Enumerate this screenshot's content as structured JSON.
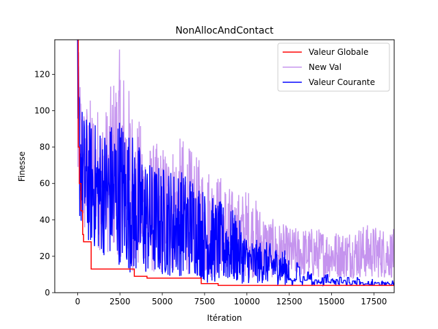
{
  "chart_data": {
    "type": "line",
    "title": "NonAllocAndContact",
    "xlabel": "Itération",
    "ylabel": "Finesse",
    "xlim": [
      -1350,
      18700
    ],
    "ylim": [
      0,
      139
    ],
    "xticks": [
      0,
      2500,
      5000,
      7500,
      10000,
      12500,
      15000,
      17500
    ],
    "yticks": [
      0,
      20,
      40,
      60,
      80,
      100,
      120
    ],
    "legend_position": "upper-right",
    "grid": false,
    "series": [
      {
        "name": "Valeur Globale",
        "color": "#ff0000",
        "step_points": [
          [
            0,
            139
          ],
          [
            40,
            80
          ],
          [
            100,
            60
          ],
          [
            200,
            45
          ],
          [
            300,
            32
          ],
          [
            350,
            28
          ],
          [
            800,
            13
          ],
          [
            3350,
            9
          ],
          [
            4100,
            8
          ],
          [
            7300,
            5
          ],
          [
            8300,
            4
          ],
          [
            16800,
            4
          ],
          [
            18700,
            4
          ]
        ]
      },
      {
        "name": "New Val",
        "color": "#c594ee",
        "envelope": [
          [
            0,
            45,
            139
          ],
          [
            300,
            30,
            108
          ],
          [
            800,
            25,
            108
          ],
          [
            1600,
            22,
            100
          ],
          [
            2500,
            20,
            135
          ],
          [
            3400,
            10,
            100
          ],
          [
            4300,
            10,
            83
          ],
          [
            5200,
            10,
            82
          ],
          [
            6200,
            10,
            86
          ],
          [
            7000,
            10,
            75
          ],
          [
            7600,
            8,
            72
          ],
          [
            8500,
            8,
            65
          ],
          [
            9300,
            8,
            55
          ],
          [
            10100,
            8,
            58
          ],
          [
            11200,
            8,
            42
          ],
          [
            12600,
            8,
            36
          ],
          [
            14000,
            8,
            36
          ],
          [
            15600,
            8,
            34
          ],
          [
            17000,
            8,
            38
          ],
          [
            18700,
            8,
            35
          ]
        ]
      },
      {
        "name": "Valeur Courante",
        "color": "#0000ff",
        "envelope": [
          [
            0,
            45,
            139
          ],
          [
            300,
            30,
            100
          ],
          [
            800,
            25,
            95
          ],
          [
            1600,
            20,
            92
          ],
          [
            2500,
            15,
            100
          ],
          [
            3400,
            9,
            86
          ],
          [
            4300,
            9,
            72
          ],
          [
            5200,
            9,
            70
          ],
          [
            6200,
            9,
            68
          ],
          [
            7000,
            9,
            65
          ],
          [
            7600,
            5,
            55
          ],
          [
            8500,
            5,
            50
          ],
          [
            9300,
            5,
            45
          ],
          [
            10100,
            5,
            30
          ],
          [
            11200,
            5,
            28
          ],
          [
            12600,
            4,
            22
          ],
          [
            13500,
            4,
            12
          ],
          [
            14500,
            4,
            10
          ],
          [
            16000,
            4,
            10
          ],
          [
            17000,
            4,
            8
          ],
          [
            18700,
            4,
            8
          ]
        ]
      }
    ]
  }
}
